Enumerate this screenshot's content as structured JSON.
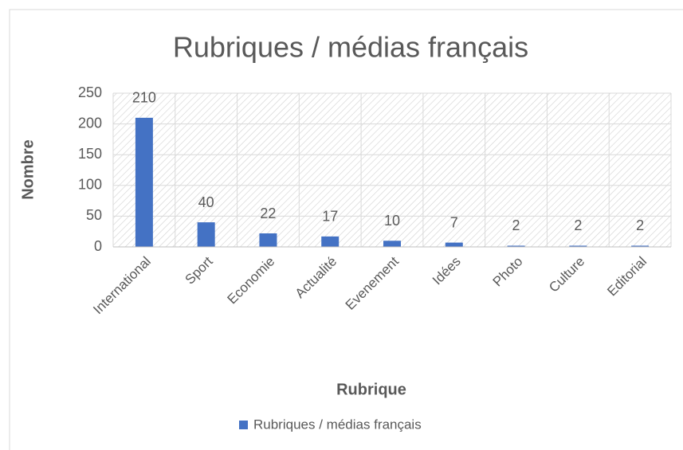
{
  "chart_data": {
    "type": "bar",
    "title": "Rubriques / médias français",
    "x_label": "Rubrique",
    "y_label": "Nombre",
    "categories": [
      "International",
      "Sport",
      "Economie",
      "Actualité",
      "Evenement",
      "Idées",
      "Photo",
      "Culture",
      "Editorial"
    ],
    "series": [
      {
        "name": "Rubriques / médias français",
        "color": "#4472c4",
        "values": [
          210,
          40,
          22,
          17,
          10,
          7,
          2,
          2,
          2
        ]
      }
    ],
    "ylim": [
      0,
      250
    ],
    "yticks": [
      0,
      50,
      100,
      150,
      200,
      250
    ],
    "grid": true,
    "legend": "bottom"
  }
}
